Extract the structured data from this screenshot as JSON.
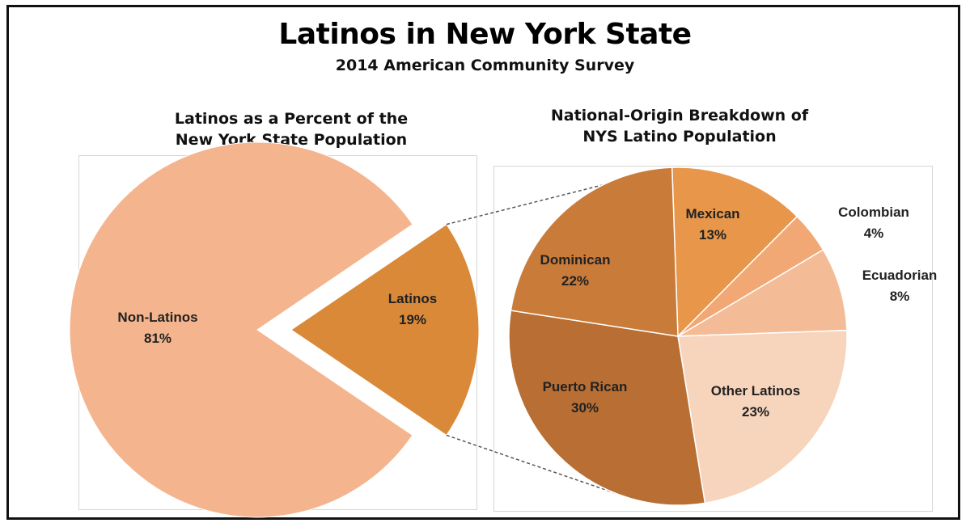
{
  "title": "Latinos in New York State",
  "subtitle": "2014 American Community Survey",
  "colors": {
    "non_latinos": "#F4B48E",
    "latinos": "#D98938",
    "mexican": "#E7964A",
    "colombian": "#F1A874",
    "ecuadorian": "#F4BC96",
    "other_latinos": "#F7D4BC",
    "puerto_rican": "#B96F33",
    "dominican": "#C97B3A",
    "connector": "#555555"
  },
  "chart_data": [
    {
      "type": "pie",
      "title_lines": [
        "Latinos as a Percent of the",
        "New York State Population"
      ],
      "slices": [
        {
          "key": "non_latinos",
          "label": "Non-Latinos",
          "value": 81,
          "value_label": "81%"
        },
        {
          "key": "latinos",
          "label": "Latinos",
          "value": 19,
          "value_label": "19%",
          "exploded": true
        }
      ]
    },
    {
      "type": "pie",
      "title_lines": [
        "National-Origin Breakdown of",
        "NYS Latino Population"
      ],
      "slices": [
        {
          "key": "mexican",
          "label": "Mexican",
          "value": 13,
          "value_label": "13%"
        },
        {
          "key": "colombian",
          "label": "Colombian",
          "value": 4,
          "value_label": "4%"
        },
        {
          "key": "ecuadorian",
          "label": "Ecuadorian",
          "value": 8,
          "value_label": "8%"
        },
        {
          "key": "other_latinos",
          "label": "Other Latinos",
          "value": 23,
          "value_label": "23%"
        },
        {
          "key": "puerto_rican",
          "label": "Puerto Rican",
          "value": 30,
          "value_label": "30%"
        },
        {
          "key": "dominican",
          "label": "Dominican",
          "value": 22,
          "value_label": "22%"
        }
      ]
    }
  ]
}
